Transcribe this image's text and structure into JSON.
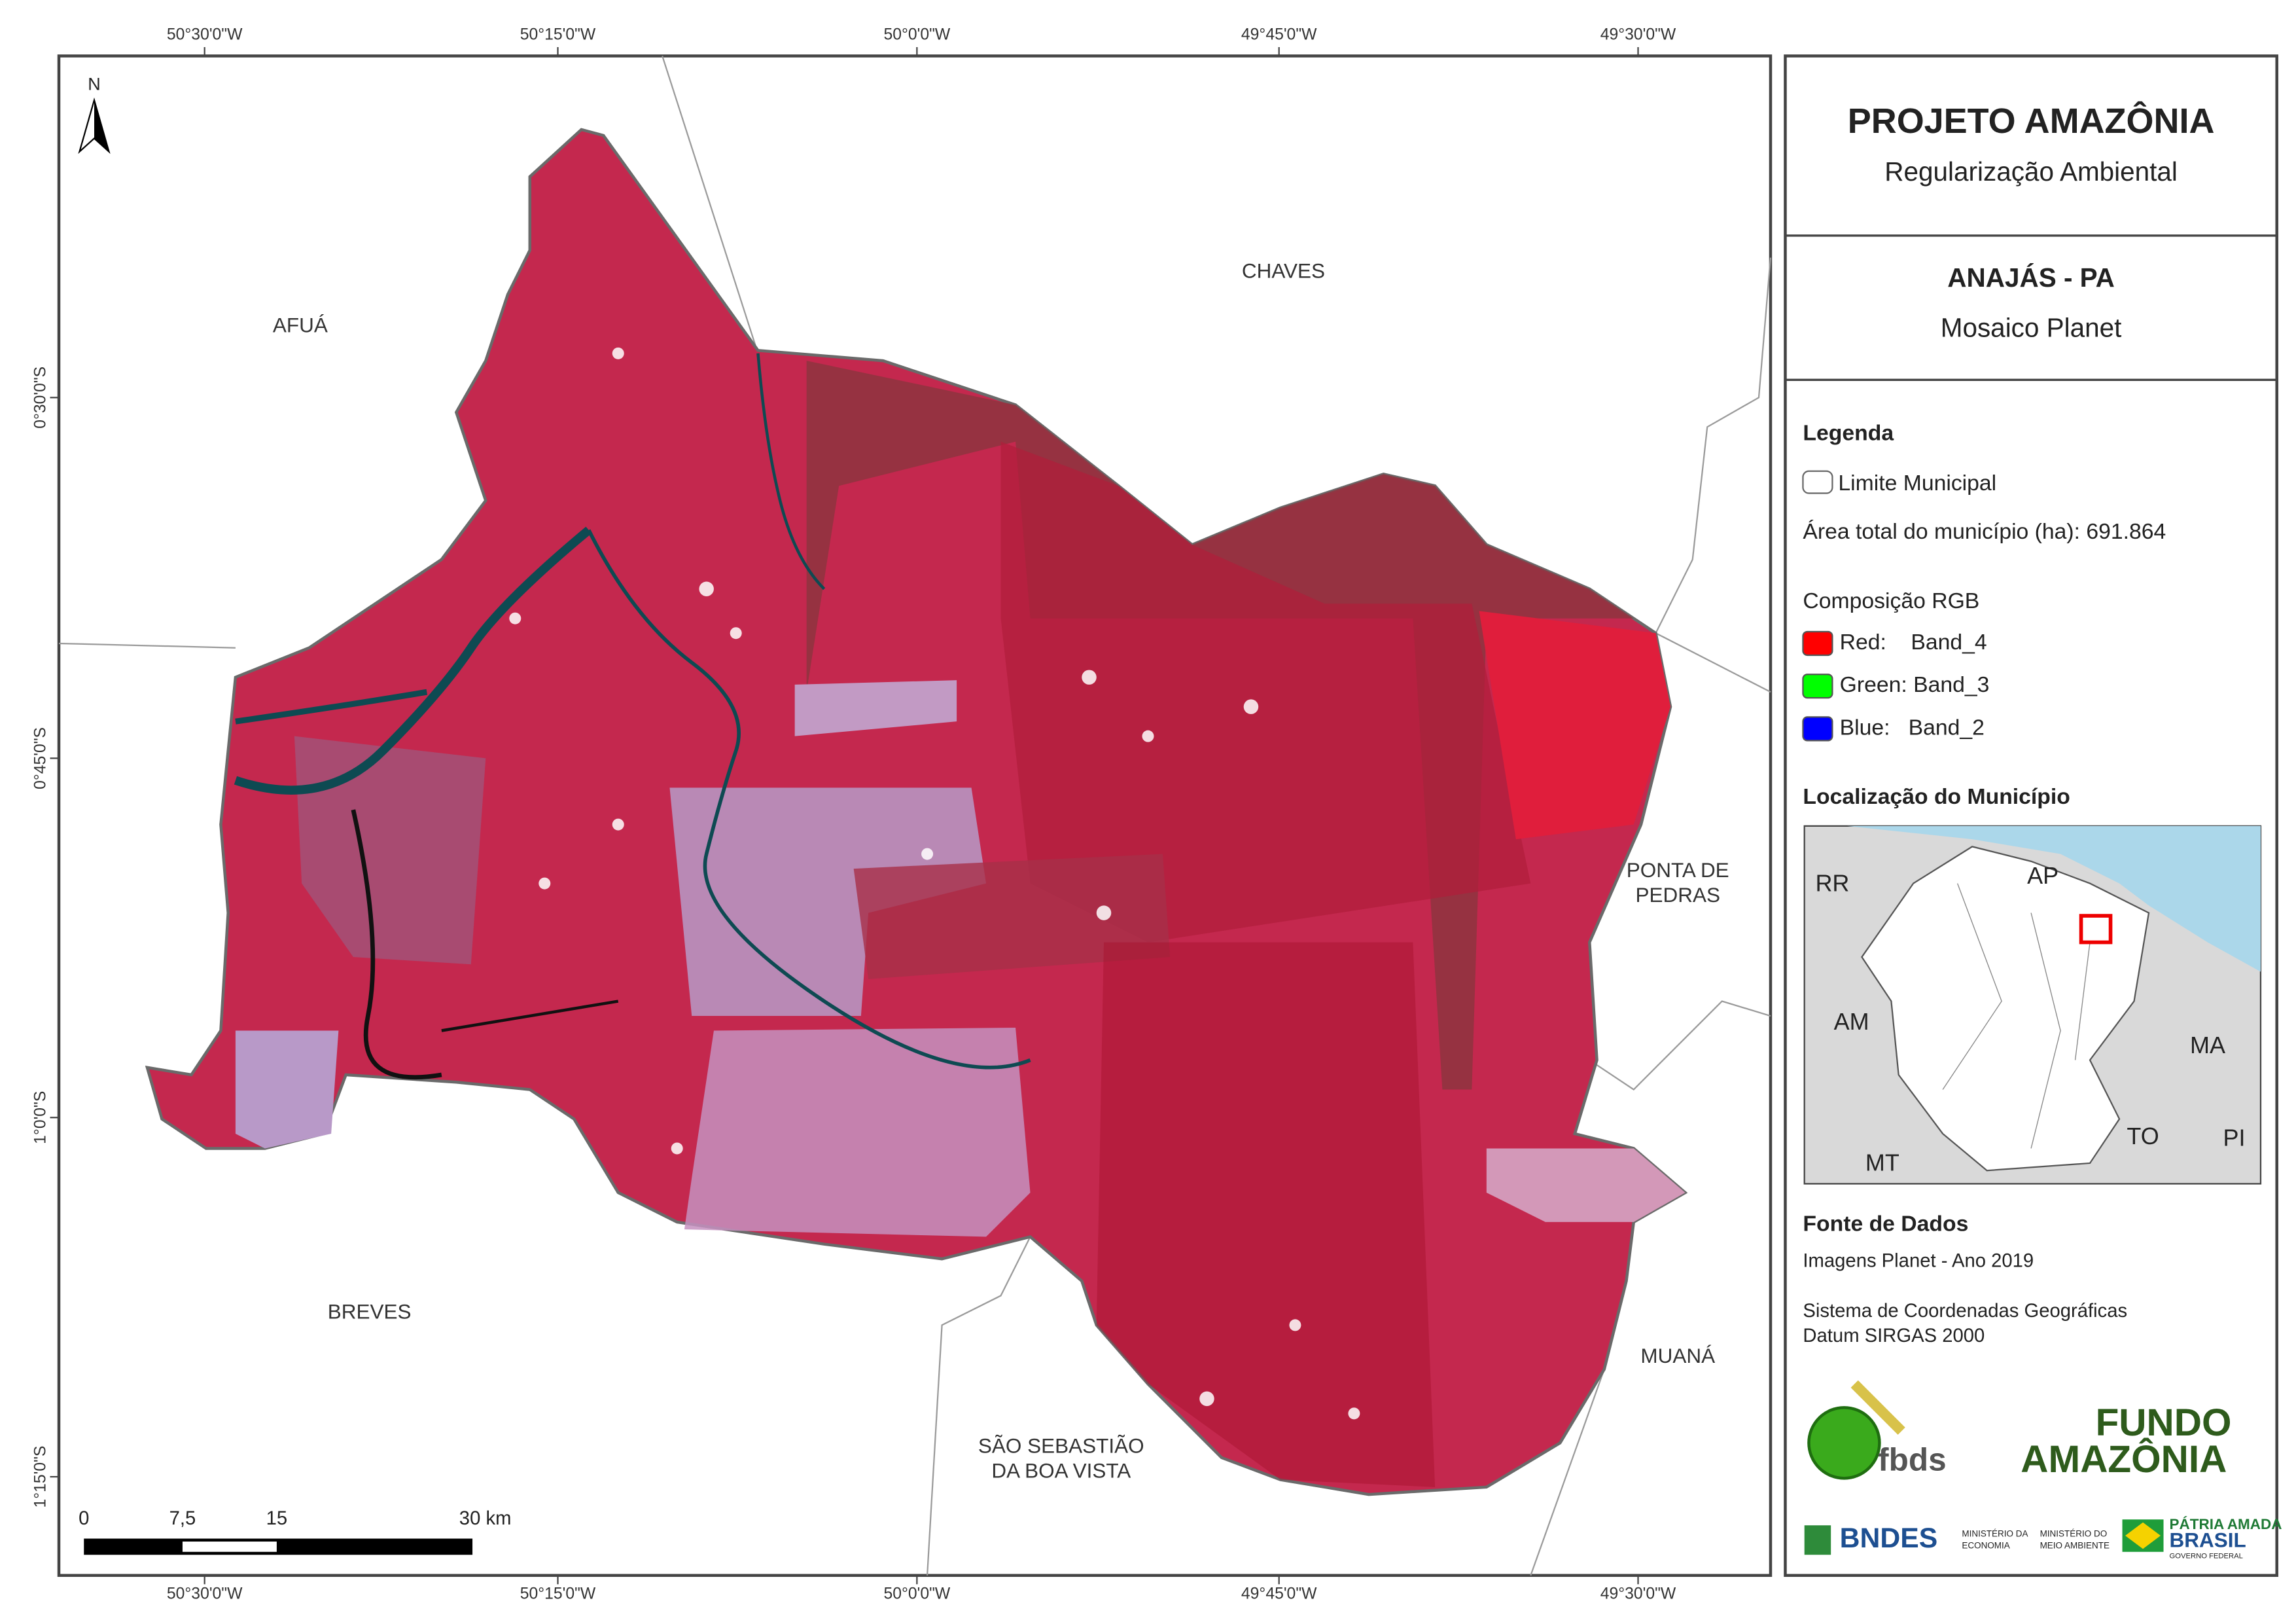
{
  "map": {
    "top_coords": [
      "50°30'0\"W",
      "50°15'0\"W",
      "50°0'0\"W",
      "49°45'0\"W",
      "49°30'0\"W"
    ],
    "bottom_coords": [
      "50°30'0\"W",
      "50°15'0\"W",
      "50°0'0\"W",
      "49°45'0\"W",
      "49°30'0\"W"
    ],
    "left_coords": [
      "0°30'0\"S",
      "0°45'0\"S",
      "1°0'0\"S",
      "1°15'0\"S"
    ],
    "north": "N",
    "neighbors": [
      "AFUÁ",
      "CHAVES",
      "PONTA DE",
      "PEDRAS",
      "BREVES",
      "SÃO SEBASTIÃO",
      "DA BOA VISTA",
      "MUANÁ"
    ],
    "scale": [
      "0",
      "7,5",
      "15",
      "30 km"
    ]
  },
  "panel": {
    "title": "PROJETO AMAZÔNIA",
    "subtitle": "Regularização Ambiental",
    "municipality": "ANAJÁS - PA",
    "mosaic": "Mosaico Planet",
    "legend_title": "Legenda",
    "limit": "Limite Municipal",
    "area": "Área total do município (ha): 691.864",
    "rgb_title": "Composição RGB",
    "bands": [
      {
        "label": "Red:    Band_4",
        "color": "#ff0000"
      },
      {
        "label": "Green: Band_3",
        "color": "#00ff00"
      },
      {
        "label": "Blue:   Band_2",
        "color": "#0000ff"
      }
    ],
    "location_title": "Localização do Município",
    "states": [
      "RR",
      "AP",
      "AM",
      "MA",
      "TO",
      "PI",
      "MT"
    ],
    "sources_title": "Fonte de Dados",
    "sources": [
      "Imagens Planet - Ano 2019",
      "Sistema de Coordenadas Geográficas",
      "Datum SIRGAS 2000"
    ],
    "logos": [
      "fbds",
      "FUNDO",
      "AMAZÔNIA",
      "BNDES",
      "MINISTÉRIO DA",
      "ECONOMIA",
      "MINISTÉRIO DO",
      "MEIO AMBIENTE",
      "PÁTRIA AMADA",
      "BRASIL",
      "GOVERNO FEDERAL"
    ]
  }
}
